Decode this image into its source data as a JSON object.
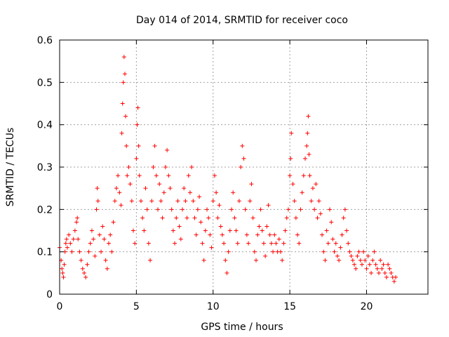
{
  "chart_data": {
    "type": "scatter",
    "title": "Day 014 of 2014, SRMTID for receiver coco",
    "xlabel": "GPS time / hours",
    "ylabel": "SRMTID / TECUs",
    "xlim": [
      0,
      24
    ],
    "ylim": [
      0,
      0.6
    ],
    "x_ticks": [
      0,
      5,
      10,
      15,
      20
    ],
    "x_tick_labels": [
      "0",
      "5",
      "10",
      "15",
      "20"
    ],
    "y_ticks": [
      0,
      0.1,
      0.2,
      0.3,
      0.4,
      0.5,
      0.6
    ],
    "y_tick_labels": [
      "0",
      "0.1",
      "0.2",
      "0.3",
      "0.4",
      "0.5",
      "0.6"
    ],
    "grid": true,
    "marker": "+",
    "color": "#ff0000",
    "series": [
      {
        "name": "SRMTID",
        "points": [
          [
            0.0,
            0.11
          ],
          [
            0.1,
            0.08
          ],
          [
            0.15,
            0.06
          ],
          [
            0.2,
            0.05
          ],
          [
            0.25,
            0.04
          ],
          [
            0.3,
            0.07
          ],
          [
            0.35,
            0.1
          ],
          [
            0.4,
            0.12
          ],
          [
            0.45,
            0.13
          ],
          [
            0.5,
            0.11
          ],
          [
            0.6,
            0.14
          ],
          [
            0.7,
            0.12
          ],
          [
            0.8,
            0.1
          ],
          [
            0.9,
            0.13
          ],
          [
            1.0,
            0.15
          ],
          [
            1.1,
            0.17
          ],
          [
            1.15,
            0.18
          ],
          [
            1.2,
            0.13
          ],
          [
            1.3,
            0.1
          ],
          [
            1.4,
            0.08
          ],
          [
            1.5,
            0.06
          ],
          [
            1.6,
            0.05
          ],
          [
            1.7,
            0.04
          ],
          [
            1.8,
            0.07
          ],
          [
            1.9,
            0.1
          ],
          [
            2.0,
            0.12
          ],
          [
            2.1,
            0.15
          ],
          [
            2.2,
            0.13
          ],
          [
            2.3,
            0.09
          ],
          [
            2.4,
            0.2
          ],
          [
            2.45,
            0.25
          ],
          [
            2.5,
            0.22
          ],
          [
            2.6,
            0.14
          ],
          [
            2.7,
            0.1
          ],
          [
            2.8,
            0.16
          ],
          [
            2.9,
            0.13
          ],
          [
            3.0,
            0.08
          ],
          [
            3.1,
            0.06
          ],
          [
            3.2,
            0.12
          ],
          [
            3.3,
            0.14
          ],
          [
            3.4,
            0.1
          ],
          [
            3.5,
            0.17
          ],
          [
            3.6,
            0.22
          ],
          [
            3.7,
            0.25
          ],
          [
            3.8,
            0.28
          ],
          [
            3.9,
            0.24
          ],
          [
            4.0,
            0.21
          ],
          [
            4.05,
            0.38
          ],
          [
            4.1,
            0.45
          ],
          [
            4.15,
            0.5
          ],
          [
            4.2,
            0.56
          ],
          [
            4.25,
            0.52
          ],
          [
            4.3,
            0.42
          ],
          [
            4.35,
            0.35
          ],
          [
            4.4,
            0.28
          ],
          [
            4.5,
            0.3
          ],
          [
            4.6,
            0.26
          ],
          [
            4.7,
            0.22
          ],
          [
            4.8,
            0.15
          ],
          [
            4.9,
            0.12
          ],
          [
            5.0,
            0.32
          ],
          [
            5.05,
            0.4
          ],
          [
            5.1,
            0.44
          ],
          [
            5.15,
            0.35
          ],
          [
            5.2,
            0.28
          ],
          [
            5.3,
            0.22
          ],
          [
            5.4,
            0.18
          ],
          [
            5.5,
            0.15
          ],
          [
            5.6,
            0.25
          ],
          [
            5.7,
            0.2
          ],
          [
            5.8,
            0.12
          ],
          [
            5.9,
            0.08
          ],
          [
            6.0,
            0.22
          ],
          [
            6.1,
            0.3
          ],
          [
            6.2,
            0.35
          ],
          [
            6.3,
            0.28
          ],
          [
            6.4,
            0.2
          ],
          [
            6.5,
            0.26
          ],
          [
            6.6,
            0.22
          ],
          [
            6.7,
            0.18
          ],
          [
            6.8,
            0.24
          ],
          [
            6.9,
            0.3
          ],
          [
            7.0,
            0.34
          ],
          [
            7.1,
            0.28
          ],
          [
            7.2,
            0.25
          ],
          [
            7.3,
            0.2
          ],
          [
            7.4,
            0.15
          ],
          [
            7.5,
            0.12
          ],
          [
            7.6,
            0.18
          ],
          [
            7.7,
            0.22
          ],
          [
            7.8,
            0.16
          ],
          [
            7.9,
            0.13
          ],
          [
            8.0,
            0.2
          ],
          [
            8.1,
            0.25
          ],
          [
            8.2,
            0.22
          ],
          [
            8.3,
            0.18
          ],
          [
            8.4,
            0.28
          ],
          [
            8.5,
            0.24
          ],
          [
            8.6,
            0.3
          ],
          [
            8.7,
            0.22
          ],
          [
            8.8,
            0.18
          ],
          [
            8.9,
            0.14
          ],
          [
            9.0,
            0.2
          ],
          [
            9.1,
            0.23
          ],
          [
            9.2,
            0.17
          ],
          [
            9.3,
            0.12
          ],
          [
            9.4,
            0.08
          ],
          [
            9.5,
            0.15
          ],
          [
            9.6,
            0.2
          ],
          [
            9.7,
            0.18
          ],
          [
            9.8,
            0.14
          ],
          [
            9.9,
            0.11
          ],
          [
            10.0,
            0.22
          ],
          [
            10.1,
            0.28
          ],
          [
            10.2,
            0.24
          ],
          [
            10.3,
            0.18
          ],
          [
            10.4,
            0.21
          ],
          [
            10.5,
            0.16
          ],
          [
            10.6,
            0.14
          ],
          [
            10.7,
            0.12
          ],
          [
            10.8,
            0.08
          ],
          [
            10.9,
            0.05
          ],
          [
            11.0,
            0.1
          ],
          [
            11.1,
            0.15
          ],
          [
            11.2,
            0.2
          ],
          [
            11.3,
            0.24
          ],
          [
            11.4,
            0.18
          ],
          [
            11.5,
            0.15
          ],
          [
            11.6,
            0.12
          ],
          [
            11.7,
            0.22
          ],
          [
            11.8,
            0.3
          ],
          [
            11.9,
            0.35
          ],
          [
            12.0,
            0.32
          ],
          [
            12.1,
            0.2
          ],
          [
            12.2,
            0.14
          ],
          [
            12.3,
            0.12
          ],
          [
            12.4,
            0.22
          ],
          [
            12.5,
            0.26
          ],
          [
            12.6,
            0.18
          ],
          [
            12.7,
            0.1
          ],
          [
            12.8,
            0.08
          ],
          [
            12.9,
            0.14
          ],
          [
            13.0,
            0.16
          ],
          [
            13.1,
            0.2
          ],
          [
            13.2,
            0.15
          ],
          [
            13.3,
            0.12
          ],
          [
            13.4,
            0.09
          ],
          [
            13.5,
            0.16
          ],
          [
            13.6,
            0.21
          ],
          [
            13.7,
            0.14
          ],
          [
            13.8,
            0.12
          ],
          [
            13.9,
            0.1
          ],
          [
            14.0,
            0.14
          ],
          [
            14.1,
            0.12
          ],
          [
            14.2,
            0.1
          ],
          [
            14.3,
            0.13
          ],
          [
            14.4,
            0.1
          ],
          [
            14.5,
            0.08
          ],
          [
            14.6,
            0.12
          ],
          [
            14.7,
            0.15
          ],
          [
            14.8,
            0.18
          ],
          [
            14.9,
            0.2
          ],
          [
            15.0,
            0.28
          ],
          [
            15.05,
            0.32
          ],
          [
            15.1,
            0.38
          ],
          [
            15.2,
            0.26
          ],
          [
            15.3,
            0.22
          ],
          [
            15.4,
            0.18
          ],
          [
            15.5,
            0.14
          ],
          [
            15.6,
            0.12
          ],
          [
            15.7,
            0.2
          ],
          [
            15.8,
            0.24
          ],
          [
            15.9,
            0.28
          ],
          [
            16.0,
            0.32
          ],
          [
            16.1,
            0.35
          ],
          [
            16.15,
            0.38
          ],
          [
            16.2,
            0.42
          ],
          [
            16.25,
            0.33
          ],
          [
            16.3,
            0.28
          ],
          [
            16.4,
            0.22
          ],
          [
            16.5,
            0.25
          ],
          [
            16.6,
            0.2
          ],
          [
            16.7,
            0.26
          ],
          [
            16.8,
            0.18
          ],
          [
            16.9,
            0.22
          ],
          [
            17.0,
            0.19
          ],
          [
            17.1,
            0.14
          ],
          [
            17.2,
            0.1
          ],
          [
            17.3,
            0.08
          ],
          [
            17.4,
            0.15
          ],
          [
            17.5,
            0.12
          ],
          [
            17.6,
            0.2
          ],
          [
            17.7,
            0.17
          ],
          [
            17.8,
            0.13
          ],
          [
            17.9,
            0.1
          ],
          [
            18.0,
            0.12
          ],
          [
            18.1,
            0.09
          ],
          [
            18.2,
            0.08
          ],
          [
            18.3,
            0.11
          ],
          [
            18.4,
            0.14
          ],
          [
            18.5,
            0.18
          ],
          [
            18.6,
            0.2
          ],
          [
            18.7,
            0.15
          ],
          [
            18.8,
            0.12
          ],
          [
            18.9,
            0.1
          ],
          [
            19.0,
            0.09
          ],
          [
            19.1,
            0.08
          ],
          [
            19.2,
            0.07
          ],
          [
            19.3,
            0.06
          ],
          [
            19.4,
            0.09
          ],
          [
            19.5,
            0.1
          ],
          [
            19.6,
            0.08
          ],
          [
            19.7,
            0.07
          ],
          [
            19.8,
            0.1
          ],
          [
            19.9,
            0.08
          ],
          [
            20.0,
            0.06
          ],
          [
            20.1,
            0.09
          ],
          [
            20.2,
            0.07
          ],
          [
            20.3,
            0.05
          ],
          [
            20.4,
            0.08
          ],
          [
            20.5,
            0.1
          ],
          [
            20.6,
            0.07
          ],
          [
            20.7,
            0.06
          ],
          [
            20.8,
            0.05
          ],
          [
            20.9,
            0.08
          ],
          [
            21.0,
            0.06
          ],
          [
            21.1,
            0.07
          ],
          [
            21.2,
            0.05
          ],
          [
            21.3,
            0.04
          ],
          [
            21.4,
            0.07
          ],
          [
            21.5,
            0.06
          ],
          [
            21.6,
            0.05
          ],
          [
            21.7,
            0.04
          ],
          [
            21.8,
            0.03
          ],
          [
            21.9,
            0.04
          ]
        ]
      }
    ]
  }
}
